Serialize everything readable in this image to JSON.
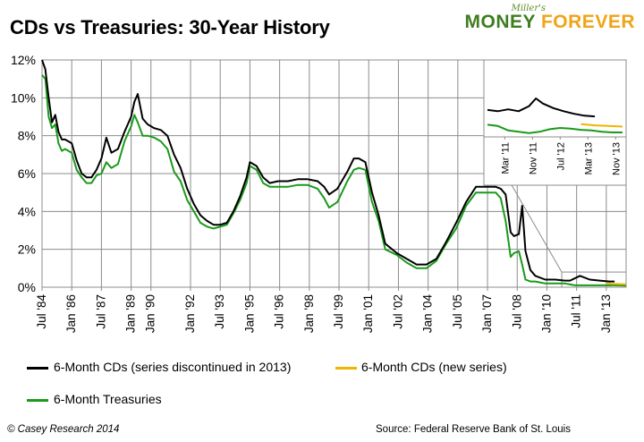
{
  "header": {
    "title": "CDs vs Treasuries: 30-Year History"
  },
  "logo": {
    "pre": "Miller's",
    "word1": "MONEY",
    "word2": "FOREVER"
  },
  "footer": {
    "left": "© Casey Research 2014",
    "right": "Source: Federal Reserve Bank of St. Louis"
  },
  "chart_data": {
    "type": "line",
    "title": "CDs vs Treasuries: 30-Year History",
    "xlabel": "",
    "ylabel": "",
    "ylim": [
      0,
      12
    ],
    "y_ticks": [
      "0%",
      "2%",
      "4%",
      "6%",
      "8%",
      "10%",
      "12%"
    ],
    "x_range": [
      "Jul '84",
      "Jan '14"
    ],
    "x_ticks": [
      "Jul '84",
      "Jan '86",
      "Jul '87",
      "Jan '89",
      "Jan '90",
      "Jan '92",
      "Jul '93",
      "Jan '95",
      "Jul '96",
      "Jan '98",
      "Jul '99",
      "Jan '01",
      "Jul '02",
      "Jan '04",
      "Jul '05",
      "Jan '07",
      "Jul '08",
      "Jan '10",
      "Jul '11",
      "Jan '13"
    ],
    "grid": true,
    "legend_position": "bottom",
    "series": [
      {
        "name": "6-Month CDs (series discontinued in 2013)",
        "color": "#000000",
        "x": [
          "1984-07",
          "1984-09",
          "1984-11",
          "1985-01",
          "1985-03",
          "1985-05",
          "1985-07",
          "1985-09",
          "1985-11",
          "1986-01",
          "1986-04",
          "1986-07",
          "1986-10",
          "1987-01",
          "1987-04",
          "1987-07",
          "1987-10",
          "1988-01",
          "1988-05",
          "1988-09",
          "1989-01",
          "1989-03",
          "1989-05",
          "1989-08",
          "1989-11",
          "1990-03",
          "1990-07",
          "1990-11",
          "1991-03",
          "1991-07",
          "1991-11",
          "1992-03",
          "1992-07",
          "1992-11",
          "1993-03",
          "1993-07",
          "1993-11",
          "1994-03",
          "1994-07",
          "1994-11",
          "1995-01",
          "1995-05",
          "1995-09",
          "1996-01",
          "1996-06",
          "1996-12",
          "1997-06",
          "1997-12",
          "1998-06",
          "1998-10",
          "1999-01",
          "1999-06",
          "1999-12",
          "2000-04",
          "2000-07",
          "2000-11",
          "2001-03",
          "2001-07",
          "2001-11",
          "2002-06",
          "2002-12",
          "2003-06",
          "2003-12",
          "2004-06",
          "2004-12",
          "2005-06",
          "2005-12",
          "2006-06",
          "2006-12",
          "2007-06",
          "2007-09",
          "2007-12",
          "2008-03",
          "2008-05",
          "2008-08",
          "2008-10",
          "2008-12",
          "2009-03",
          "2009-06",
          "2009-12",
          "2010-06",
          "2010-12",
          "2011-03",
          "2011-09",
          "2012-03",
          "2012-09",
          "2013-03",
          "2013-06"
        ],
        "values": [
          12.0,
          11.5,
          10.0,
          8.7,
          9.1,
          8.2,
          7.8,
          7.8,
          7.7,
          7.6,
          6.7,
          6.0,
          5.8,
          5.8,
          6.2,
          6.8,
          7.9,
          7.1,
          7.3,
          8.2,
          9.0,
          9.8,
          10.2,
          8.9,
          8.6,
          8.4,
          8.3,
          8.0,
          7.0,
          6.3,
          5.2,
          4.4,
          3.8,
          3.5,
          3.3,
          3.3,
          3.4,
          4.0,
          4.8,
          5.8,
          6.6,
          6.4,
          5.8,
          5.5,
          5.6,
          5.6,
          5.7,
          5.7,
          5.6,
          5.3,
          4.9,
          5.2,
          6.1,
          6.8,
          6.8,
          6.6,
          5.0,
          3.8,
          2.3,
          1.8,
          1.5,
          1.2,
          1.2,
          1.5,
          2.4,
          3.4,
          4.5,
          5.3,
          5.3,
          5.3,
          5.2,
          4.9,
          2.9,
          2.7,
          2.8,
          4.3,
          1.9,
          0.9,
          0.6,
          0.4,
          0.4,
          0.35,
          0.35,
          0.6,
          0.4,
          0.35,
          0.3,
          0.3
        ]
      },
      {
        "name": "6-Month CDs (new series)",
        "color": "#f0b400",
        "x": [
          "2013-01",
          "2013-04",
          "2013-07",
          "2013-10",
          "2014-01"
        ],
        "values": [
          0.22,
          0.18,
          0.17,
          0.16,
          0.15
        ]
      },
      {
        "name": "6-Month Treasuries",
        "color": "#1a9a1a",
        "x": [
          "1984-07",
          "1984-09",
          "1984-11",
          "1985-01",
          "1985-03",
          "1985-05",
          "1985-07",
          "1985-09",
          "1985-11",
          "1986-01",
          "1986-04",
          "1986-07",
          "1986-10",
          "1987-01",
          "1987-04",
          "1987-07",
          "1987-10",
          "1988-01",
          "1988-05",
          "1988-09",
          "1989-01",
          "1989-03",
          "1989-05",
          "1989-08",
          "1989-11",
          "1990-03",
          "1990-07",
          "1990-11",
          "1991-03",
          "1991-07",
          "1991-11",
          "1992-03",
          "1992-07",
          "1992-11",
          "1993-03",
          "1993-07",
          "1993-11",
          "1994-03",
          "1994-07",
          "1994-11",
          "1995-01",
          "1995-05",
          "1995-09",
          "1996-01",
          "1996-06",
          "1996-12",
          "1997-06",
          "1997-12",
          "1998-06",
          "1998-10",
          "1999-01",
          "1999-06",
          "1999-12",
          "2000-04",
          "2000-07",
          "2000-11",
          "2001-03",
          "2001-07",
          "2001-11",
          "2002-06",
          "2002-12",
          "2003-06",
          "2003-12",
          "2004-06",
          "2004-12",
          "2005-06",
          "2005-12",
          "2006-06",
          "2006-12",
          "2007-06",
          "2007-09",
          "2007-12",
          "2008-03",
          "2008-05",
          "2008-08",
          "2008-10",
          "2008-12",
          "2009-03",
          "2009-06",
          "2009-12",
          "2010-06",
          "2010-12",
          "2011-06",
          "2012-06",
          "2013-01",
          "2013-06",
          "2014-01"
        ],
        "values": [
          11.2,
          11.0,
          9.0,
          8.4,
          8.6,
          7.6,
          7.2,
          7.3,
          7.2,
          7.1,
          6.2,
          5.8,
          5.5,
          5.5,
          5.9,
          6.0,
          6.6,
          6.3,
          6.5,
          7.7,
          8.5,
          9.1,
          8.7,
          8.0,
          8.0,
          7.9,
          7.7,
          7.3,
          6.1,
          5.6,
          4.6,
          4.0,
          3.4,
          3.2,
          3.1,
          3.2,
          3.3,
          3.9,
          4.6,
          5.5,
          6.4,
          6.2,
          5.5,
          5.3,
          5.3,
          5.3,
          5.4,
          5.4,
          5.2,
          4.7,
          4.2,
          4.5,
          5.6,
          6.2,
          6.3,
          6.2,
          4.5,
          3.5,
          2.0,
          1.7,
          1.3,
          1.0,
          1.0,
          1.4,
          2.3,
          3.1,
          4.3,
          5.0,
          5.0,
          5.0,
          4.7,
          3.5,
          1.6,
          1.8,
          1.9,
          1.2,
          0.4,
          0.3,
          0.3,
          0.2,
          0.2,
          0.2,
          0.1,
          0.1,
          0.1,
          0.1,
          0.08
        ]
      }
    ],
    "inset": {
      "x_ticks": [
        "Mar '11",
        "Nov '11",
        "Jul '12",
        "Mar '13",
        "Nov '13"
      ],
      "ylim": [
        0,
        1.2
      ],
      "x_range": [
        "2010-10",
        "2014-01"
      ],
      "series": [
        {
          "name": "6-Month CDs (series discontinued in 2013)",
          "color": "#000000",
          "x": [
            "2010-10",
            "2011-01",
            "2011-04",
            "2011-07",
            "2011-10",
            "2011-12",
            "2012-02",
            "2012-05",
            "2012-08",
            "2012-11",
            "2013-02",
            "2013-05"
          ],
          "values": [
            0.42,
            0.4,
            0.43,
            0.4,
            0.48,
            0.6,
            0.52,
            0.45,
            0.4,
            0.36,
            0.33,
            0.32
          ]
        },
        {
          "name": "6-Month CDs (new series)",
          "color": "#f0b400",
          "x": [
            "2013-01",
            "2013-05",
            "2013-09",
            "2014-01"
          ],
          "values": [
            0.2,
            0.18,
            0.17,
            0.16
          ]
        },
        {
          "name": "6-Month Treasuries",
          "color": "#1a9a1a",
          "x": [
            "2010-10",
            "2011-01",
            "2011-04",
            "2011-07",
            "2011-10",
            "2012-01",
            "2012-04",
            "2012-07",
            "2012-10",
            "2013-01",
            "2013-04",
            "2013-07",
            "2013-10",
            "2014-01"
          ],
          "values": [
            0.19,
            0.17,
            0.1,
            0.08,
            0.06,
            0.08,
            0.12,
            0.14,
            0.13,
            0.11,
            0.1,
            0.08,
            0.07,
            0.07
          ]
        }
      ]
    }
  }
}
